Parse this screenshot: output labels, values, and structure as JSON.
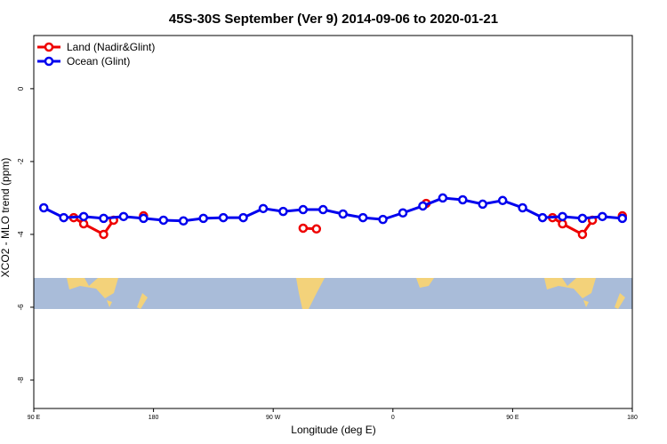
{
  "chart_data": {
    "type": "line",
    "title": "45S-30S September (Ver 9)   2014-09-06 to 2020-01-21",
    "x_label": "Longitude (deg E)",
    "y_label": "XCO2 - MLO trend (ppm)",
    "xlim": [
      90,
      540
    ],
    "ylim": [
      -8.78,
      1.46
    ],
    "xticks": [
      {
        "value": 90,
        "label": "90 E"
      },
      {
        "value": 180,
        "label": "180"
      },
      {
        "value": 270,
        "label": "90 W"
      },
      {
        "value": 360,
        "label": "0"
      },
      {
        "value": 450,
        "label": "90 E"
      },
      {
        "value": 540,
        "label": "180"
      }
    ],
    "yticks": [
      0,
      -2,
      -4,
      -6,
      -8
    ],
    "legend": "top-left",
    "series": [
      {
        "name": "Land (Nadir&Glint)",
        "color": "#ee0000",
        "x": [
          120,
          127.5,
          142.5,
          150,
          null,
          172.5,
          null,
          292.5,
          302.5,
          null,
          385,
          null,
          480,
          487.5,
          502.5,
          510,
          null,
          532.5
        ],
        "values": [
          -3.54,
          -3.71,
          -4.0,
          -3.61,
          null,
          -3.49,
          null,
          -3.83,
          -3.85,
          null,
          -3.15,
          null,
          -3.54,
          -3.71,
          -4.0,
          -3.61,
          null,
          -3.49
        ]
      },
      {
        "name": "Ocean (Glint)",
        "color": "#0000ee",
        "x": [
          97.5,
          112.5,
          127.5,
          142.5,
          157.5,
          172.5,
          187.5,
          202.5,
          217.5,
          232.5,
          247.5,
          262.5,
          277.5,
          292.5,
          307.5,
          322.5,
          337.5,
          352.5,
          367.5,
          382.5,
          397.5,
          412.5,
          427.5,
          442.5,
          457.5,
          472.5,
          487.5,
          502.5,
          517.5,
          532.5
        ],
        "values": [
          -3.27,
          -3.54,
          -3.51,
          -3.56,
          -3.51,
          -3.56,
          -3.61,
          -3.63,
          -3.56,
          -3.54,
          -3.54,
          -3.29,
          -3.37,
          -3.32,
          -3.32,
          -3.44,
          -3.54,
          -3.59,
          -3.41,
          -3.22,
          -3.0,
          -3.05,
          -3.17,
          -3.07,
          -3.27,
          -3.54,
          -3.51,
          -3.56,
          -3.51,
          -3.56
        ]
      }
    ]
  }
}
